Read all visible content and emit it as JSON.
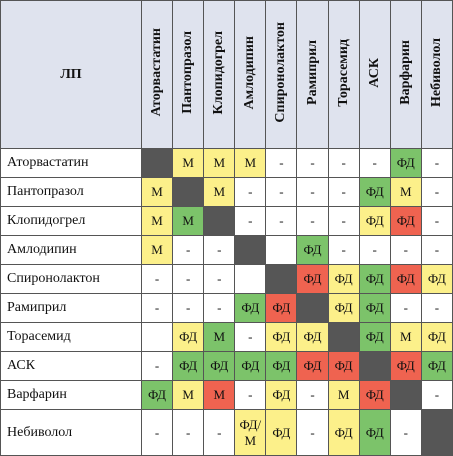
{
  "table": {
    "corner": "ЛП",
    "columns": [
      "Аторвастатин",
      "Пантопразол",
      "Клопидогрел",
      "Амлодипин",
      "Спиронолактон",
      "Рамиприл",
      "Торасемид",
      "АСК",
      "Варфарин",
      "Небиволол"
    ],
    "rows": [
      {
        "label": "Аторвастатин",
        "cells": [
          null,
          "М",
          "М",
          "М",
          "-",
          "-",
          "-",
          "-",
          "ФД",
          "-"
        ],
        "colors": [
          "dark",
          "yellow",
          "yellow",
          "yellow",
          null,
          null,
          null,
          null,
          "green",
          null
        ]
      },
      {
        "label": "Пантопразол",
        "cells": [
          "М",
          null,
          "М",
          "-",
          "-",
          "-",
          "-",
          "ФД",
          "М",
          "-"
        ],
        "colors": [
          "yellow",
          "dark",
          "yellow",
          null,
          null,
          null,
          null,
          "green",
          "yellow",
          null
        ]
      },
      {
        "label": "Клопидогрел",
        "cells": [
          "М",
          "М",
          null,
          "-",
          "-",
          "-",
          "-",
          "ФД",
          "ФД",
          "-"
        ],
        "colors": [
          "yellow",
          "green",
          "dark",
          null,
          null,
          null,
          null,
          "yellow",
          "red",
          null
        ]
      },
      {
        "label": "Амлодипин",
        "cells": [
          "М",
          "-",
          "-",
          null,
          null,
          "ФД",
          "-",
          "-",
          "-",
          "-"
        ],
        "colors": [
          "yellow",
          null,
          null,
          "dark",
          null,
          "green",
          null,
          null,
          null,
          null
        ]
      },
      {
        "label": "Спиронолактон",
        "cells": [
          "-",
          "-",
          "-",
          null,
          null,
          "ФД",
          "ФД",
          "ФД",
          "ФД",
          "ФД"
        ],
        "colors": [
          null,
          null,
          null,
          null,
          "dark",
          "red",
          "yellow",
          "green",
          "red",
          "yellow"
        ]
      },
      {
        "label": "Рамиприл",
        "cells": [
          "-",
          "-",
          "-",
          "ФД",
          "ФД",
          null,
          "ФД",
          "ФД",
          "-",
          "-"
        ],
        "colors": [
          null,
          null,
          null,
          "green",
          "red",
          "dark",
          "yellow",
          "green",
          null,
          null
        ]
      },
      {
        "label": "Торасемид",
        "cells": [
          null,
          "ФД",
          "М",
          "-",
          "ФД",
          "ФД",
          null,
          "ФД",
          "М",
          "ФД"
        ],
        "colors": [
          null,
          "yellow",
          "green",
          null,
          "yellow",
          "yellow",
          "dark",
          "green",
          "yellow",
          "yellow"
        ]
      },
      {
        "label": "АСК",
        "cells": [
          "-",
          "ФД",
          "ФД",
          "ФД",
          "ФД",
          "ФД",
          "ФД",
          null,
          "ФД",
          "ФД"
        ],
        "colors": [
          null,
          "green",
          "green",
          "green",
          "green",
          "red",
          "red",
          "dark",
          "red",
          "green"
        ]
      },
      {
        "label": "Варфарин",
        "cells": [
          "ФД",
          "М",
          "М",
          "-",
          "ФД",
          "-",
          "М",
          "ФД",
          null,
          "-"
        ],
        "colors": [
          "green",
          "yellow",
          "red",
          null,
          "yellow",
          null,
          "yellow",
          "red",
          "dark",
          null
        ]
      },
      {
        "label": "Небиволол",
        "cells": [
          "-",
          "-",
          "-",
          "ФД/М",
          "ФД",
          "-",
          "ФД",
          "ФД",
          "-",
          null
        ],
        "colors": [
          null,
          null,
          null,
          "yellow",
          "yellow",
          null,
          "yellow",
          "green",
          null,
          "dark"
        ]
      }
    ]
  }
}
